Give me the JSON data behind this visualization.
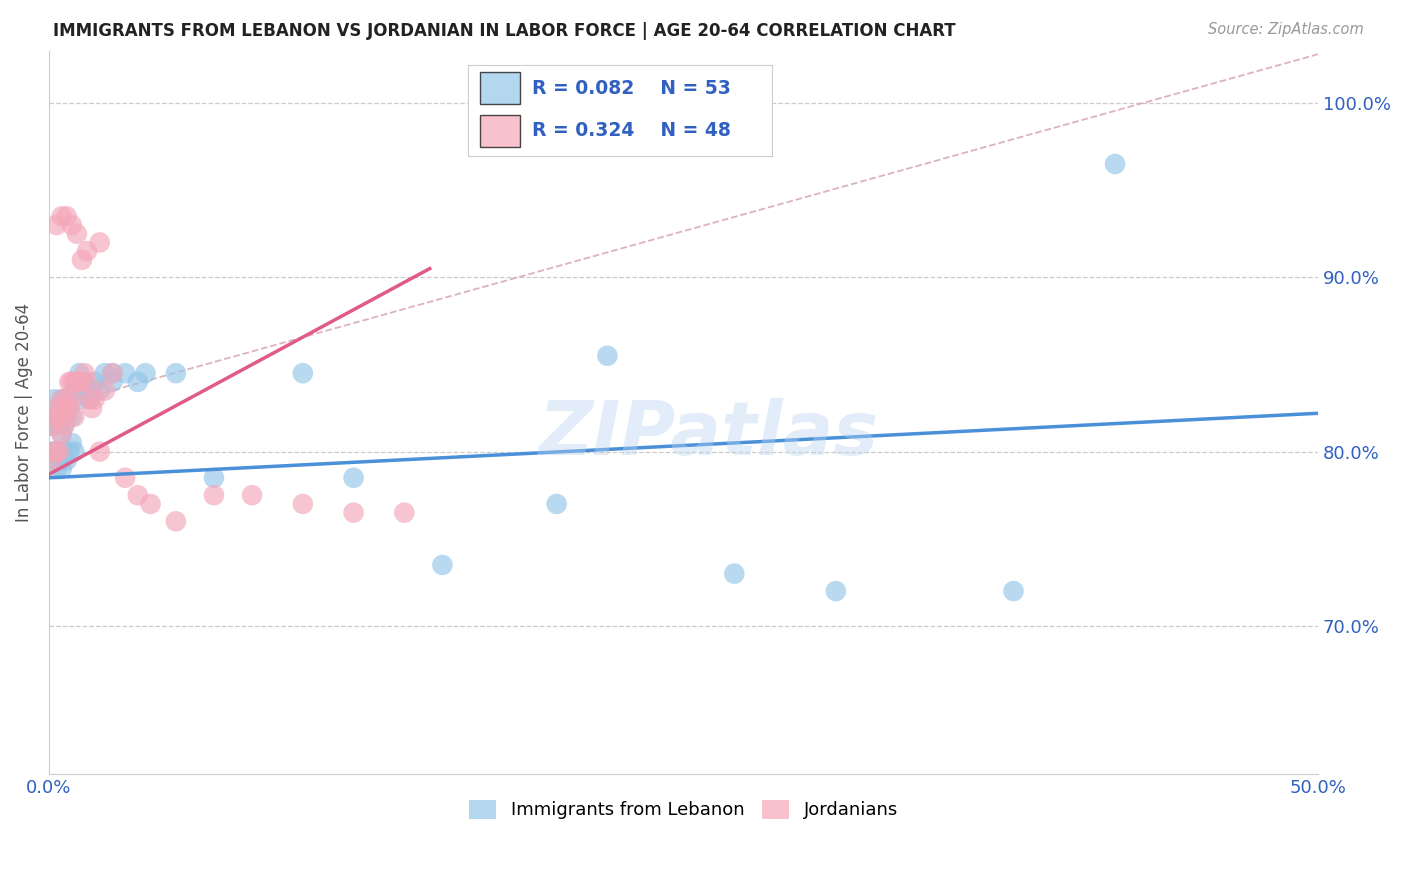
{
  "title": "IMMIGRANTS FROM LEBANON VS JORDANIAN IN LABOR FORCE | AGE 20-64 CORRELATION CHART",
  "source": "Source: ZipAtlas.com",
  "ylabel": "In Labor Force | Age 20-64",
  "xlim": [
    0.0,
    0.5
  ],
  "ylim": [
    0.615,
    1.03
  ],
  "yticks": [
    0.7,
    0.8,
    0.9,
    1.0
  ],
  "ytick_labels": [
    "70.0%",
    "80.0%",
    "90.0%",
    "100.0%"
  ],
  "xtick_labels": [
    "0.0%",
    "",
    "",
    "",
    "",
    "50.0%"
  ],
  "blue_color": "#93c6e8",
  "pink_color": "#f4a7b9",
  "blue_line_color": "#4a90d9",
  "pink_line_color": "#e05a8a",
  "legend_R1": "0.082",
  "legend_N1": "53",
  "legend_R2": "0.324",
  "legend_N2": "48",
  "watermark": "ZIPatlas",
  "blue_line_x0": 0.0,
  "blue_line_y0": 0.785,
  "blue_line_x1": 0.5,
  "blue_line_y1": 0.822,
  "pink_line_x0": 0.0,
  "pink_line_y0": 0.787,
  "pink_line_x1": 0.15,
  "pink_line_y1": 0.905,
  "dash_line_x0": 0.0,
  "dash_line_y0": 0.825,
  "dash_line_x1": 0.5,
  "dash_line_y1": 1.028,
  "blue_x": [
    0.001,
    0.001,
    0.002,
    0.002,
    0.002,
    0.003,
    0.003,
    0.003,
    0.004,
    0.004,
    0.005,
    0.005,
    0.005,
    0.006,
    0.006,
    0.006,
    0.007,
    0.007,
    0.008,
    0.008,
    0.009,
    0.009,
    0.01,
    0.01,
    0.011,
    0.012,
    0.012,
    0.013,
    0.014,
    0.015,
    0.016,
    0.017,
    0.018,
    0.02,
    0.022,
    0.025,
    0.025,
    0.03,
    0.035,
    0.038,
    0.05,
    0.065,
    0.1,
    0.12,
    0.155,
    0.2,
    0.22,
    0.27,
    0.31,
    0.38,
    0.42,
    0.005,
    0.003
  ],
  "blue_y": [
    0.8,
    0.815,
    0.8,
    0.815,
    0.83,
    0.795,
    0.8,
    0.82,
    0.8,
    0.825,
    0.795,
    0.81,
    0.83,
    0.8,
    0.815,
    0.83,
    0.795,
    0.82,
    0.8,
    0.825,
    0.805,
    0.82,
    0.8,
    0.835,
    0.84,
    0.83,
    0.845,
    0.84,
    0.84,
    0.835,
    0.83,
    0.835,
    0.84,
    0.835,
    0.845,
    0.84,
    0.845,
    0.845,
    0.84,
    0.845,
    0.845,
    0.785,
    0.845,
    0.785,
    0.735,
    0.77,
    0.855,
    0.73,
    0.72,
    0.72,
    0.965,
    0.79,
    0.79
  ],
  "pink_x": [
    0.001,
    0.001,
    0.002,
    0.002,
    0.003,
    0.003,
    0.004,
    0.004,
    0.005,
    0.005,
    0.006,
    0.006,
    0.007,
    0.007,
    0.008,
    0.008,
    0.009,
    0.009,
    0.01,
    0.01,
    0.011,
    0.012,
    0.013,
    0.014,
    0.015,
    0.016,
    0.017,
    0.018,
    0.02,
    0.022,
    0.025,
    0.03,
    0.035,
    0.04,
    0.05,
    0.065,
    0.08,
    0.1,
    0.12,
    0.14,
    0.003,
    0.005,
    0.007,
    0.009,
    0.011,
    0.013,
    0.015,
    0.02
  ],
  "pink_y": [
    0.795,
    0.815,
    0.8,
    0.82,
    0.8,
    0.825,
    0.8,
    0.82,
    0.81,
    0.83,
    0.815,
    0.825,
    0.82,
    0.83,
    0.825,
    0.84,
    0.83,
    0.84,
    0.82,
    0.84,
    0.84,
    0.84,
    0.84,
    0.845,
    0.84,
    0.83,
    0.825,
    0.83,
    0.8,
    0.835,
    0.845,
    0.785,
    0.775,
    0.77,
    0.76,
    0.775,
    0.775,
    0.77,
    0.765,
    0.765,
    0.93,
    0.935,
    0.935,
    0.93,
    0.925,
    0.91,
    0.915,
    0.92
  ]
}
